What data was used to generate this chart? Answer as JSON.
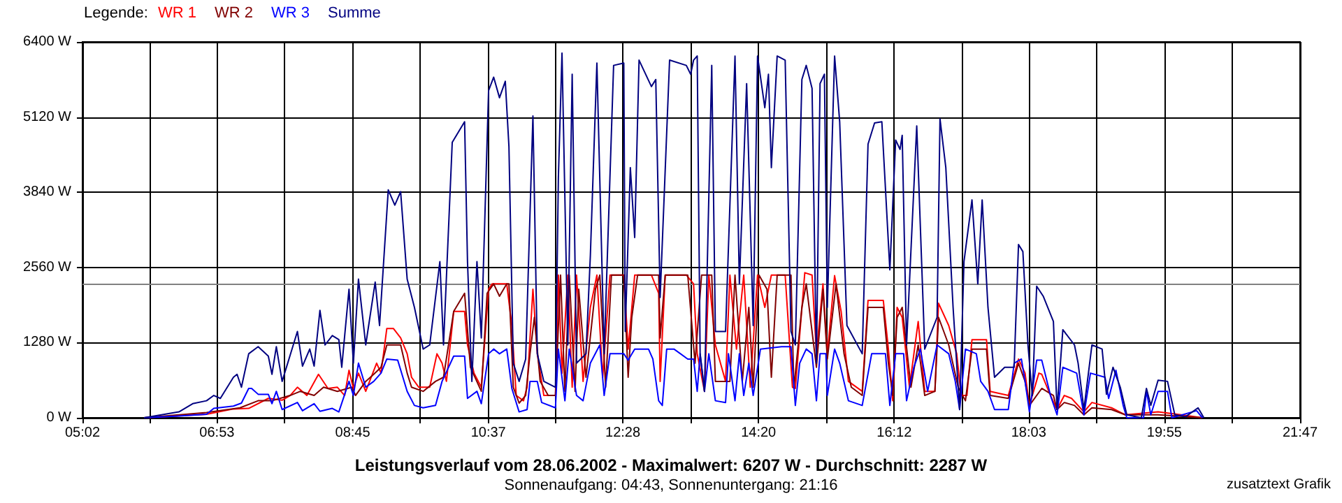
{
  "chart_data": {
    "type": "line",
    "title": "Leistungsverlauf vom 28.06.2002 - Maximalwert: 6207 W - Durchschnitt: 2287 W",
    "subtitle": "Sonnenaufgang: 04:43, Sonnenuntergang: 21:16",
    "legend_title": "Legende:",
    "annotations": [
      "zusatztext Grafik"
    ],
    "xlim": [
      5.0333,
      21.7833
    ],
    "xticks": [
      {
        "value": 5.0333,
        "label": "05:02"
      },
      {
        "value": 5.9639,
        "label": null
      },
      {
        "value": 6.8833,
        "label": "06:53"
      },
      {
        "value": 7.8139,
        "label": null
      },
      {
        "value": 8.75,
        "label": "08:45"
      },
      {
        "value": 9.6806,
        "label": null
      },
      {
        "value": 10.6167,
        "label": "10:37"
      },
      {
        "value": 11.5417,
        "label": null
      },
      {
        "value": 12.4667,
        "label": "12:28"
      },
      {
        "value": 13.4,
        "label": null
      },
      {
        "value": 14.3333,
        "label": "14:20"
      },
      {
        "value": 15.2639,
        "label": null
      },
      {
        "value": 16.2,
        "label": "16:12"
      },
      {
        "value": 17.125,
        "label": null
      },
      {
        "value": 18.05,
        "label": "18:03"
      },
      {
        "value": 18.9861,
        "label": null
      },
      {
        "value": 19.9167,
        "label": "19:55"
      },
      {
        "value": 20.85,
        "label": null
      },
      {
        "value": 21.7833,
        "label": "21:47"
      }
    ],
    "ylim": [
      0,
      6400
    ],
    "yticks": [
      {
        "value": 0,
        "label": "0 W"
      },
      {
        "value": 1280,
        "label": "1280 W"
      },
      {
        "value": 2560,
        "label": "2560 W"
      },
      {
        "value": 3840,
        "label": "3840 W"
      },
      {
        "value": 5120,
        "label": "5120 W"
      },
      {
        "value": 6400,
        "label": "6400 W"
      }
    ],
    "grid": true,
    "legend": "top left",
    "marker": "none",
    "line_style": "solid",
    "ref_lines": [
      {
        "axis": "y",
        "value": 2287,
        "color": "#808080"
      }
    ],
    "series": [
      {
        "name": "WR 1",
        "color": "#ff0000",
        "x": [
          5.88,
          6.74,
          7.11,
          7.32,
          7.59,
          7.78,
          7.89,
          7.99,
          8.12,
          8.28,
          8.41,
          8.54,
          8.64,
          8.7,
          8.76,
          8.83,
          8.93,
          9.08,
          9.14,
          9.22,
          9.31,
          9.41,
          9.5,
          9.56,
          9.66,
          9.81,
          9.91,
          9.98,
          10.04,
          10.14,
          10.29,
          10.33,
          10.42,
          10.52,
          10.62,
          10.67,
          10.87,
          10.94,
          11.0,
          11.1,
          11.15,
          11.23,
          11.29,
          11.38,
          11.54,
          11.58,
          11.63,
          11.71,
          11.77,
          11.83,
          11.92,
          12.02,
          12.11,
          12.19,
          12.29,
          12.48,
          12.54,
          12.63,
          12.86,
          12.96,
          12.98,
          13.05,
          13.34,
          13.44,
          13.49,
          13.59,
          13.65,
          13.74,
          13.88,
          13.94,
          14.03,
          14.13,
          14.22,
          14.32,
          14.42,
          14.51,
          14.7,
          14.8,
          14.84,
          14.97,
          15.07,
          15.13,
          15.22,
          15.28,
          15.38,
          15.47,
          15.57,
          15.76,
          15.84,
          16.05,
          16.12,
          16.18,
          16.24,
          16.31,
          16.41,
          16.53,
          16.62,
          16.76,
          16.81,
          16.95,
          17.06,
          17.12,
          17.2,
          17.27,
          17.47,
          17.52,
          17.77,
          17.91,
          18.0,
          18.06,
          18.19,
          18.23,
          18.35,
          18.44,
          18.54,
          18.64,
          18.81,
          18.92,
          19.19,
          19.38,
          19.83,
          20.15,
          20.44
        ],
        "values": [
          0,
          60,
          150,
          160,
          330,
          300,
          380,
          520,
          380,
          740,
          500,
          520,
          380,
          810,
          500,
          760,
          450,
          930,
          760,
          1520,
          1520,
          1360,
          1090,
          690,
          520,
          520,
          1090,
          930,
          620,
          1810,
          1810,
          1240,
          760,
          520,
          2190,
          2280,
          2280,
          1570,
          380,
          290,
          520,
          2190,
          1090,
          380,
          380,
          2430,
          760,
          2430,
          520,
          2430,
          620,
          1880,
          2430,
          690,
          2430,
          2430,
          1170,
          2430,
          2430,
          2120,
          620,
          2430,
          2430,
          2280,
          1090,
          450,
          2430,
          1240,
          620,
          2430,
          1170,
          2430,
          520,
          2430,
          1880,
          2430,
          2430,
          520,
          500,
          2470,
          2430,
          1090,
          2280,
          1090,
          2420,
          1810,
          620,
          450,
          2000,
          2000,
          1170,
          290,
          1880,
          1710,
          520,
          1640,
          450,
          450,
          1950,
          1570,
          1090,
          380,
          380,
          1330,
          1330,
          450,
          380,
          1000,
          760,
          210,
          760,
          740,
          380,
          140,
          380,
          330,
          100,
          260,
          170,
          50,
          100,
          50,
          0
        ]
      },
      {
        "name": "WR 2",
        "color": "#800000",
        "x": [
          5.88,
          6.74,
          7.2,
          7.45,
          7.64,
          7.89,
          8.03,
          8.22,
          8.35,
          8.54,
          8.74,
          8.79,
          8.93,
          9.04,
          9.14,
          9.22,
          9.41,
          9.5,
          9.56,
          9.72,
          9.89,
          10.0,
          10.14,
          10.29,
          10.37,
          10.52,
          10.6,
          10.69,
          10.77,
          10.87,
          10.9,
          10.96,
          11.04,
          11.13,
          11.19,
          11.25,
          11.33,
          11.44,
          11.54,
          11.61,
          11.67,
          11.73,
          11.81,
          11.86,
          11.96,
          12.09,
          12.15,
          12.23,
          12.31,
          12.48,
          12.54,
          12.59,
          12.67,
          12.96,
          12.98,
          13.05,
          13.36,
          13.46,
          13.55,
          13.69,
          13.74,
          13.94,
          14.01,
          14.11,
          14.2,
          14.26,
          14.34,
          14.45,
          14.51,
          14.59,
          14.78,
          14.82,
          14.93,
          14.99,
          15.13,
          15.22,
          15.28,
          15.4,
          15.51,
          15.61,
          15.76,
          15.84,
          16.05,
          16.12,
          16.18,
          16.24,
          16.31,
          16.43,
          16.53,
          16.62,
          16.76,
          16.81,
          16.95,
          17.08,
          17.18,
          17.27,
          17.47,
          17.52,
          17.77,
          17.91,
          18.0,
          18.06,
          18.23,
          18.39,
          18.44,
          18.54,
          18.68,
          18.81,
          18.92,
          19.19,
          19.38,
          19.83,
          20.21,
          20.44
        ],
        "values": [
          0,
          90,
          170,
          290,
          290,
          380,
          450,
          380,
          520,
          450,
          520,
          380,
          620,
          740,
          860,
          1240,
          1240,
          760,
          520,
          450,
          620,
          690,
          1810,
          2120,
          860,
          450,
          2120,
          2280,
          2070,
          2280,
          2280,
          520,
          250,
          380,
          1090,
          1710,
          620,
          380,
          380,
          2430,
          450,
          2430,
          450,
          2190,
          690,
          2190,
          2430,
          520,
          2430,
          2430,
          690,
          1710,
          2430,
          2430,
          1360,
          2430,
          2430,
          930,
          2430,
          2430,
          620,
          620,
          2430,
          620,
          1880,
          520,
          2430,
          2190,
          690,
          2430,
          2430,
          500,
          1880,
          2280,
          860,
          2190,
          1000,
          2280,
          1090,
          520,
          380,
          1880,
          1880,
          930,
          380,
          1710,
          1880,
          520,
          1240,
          380,
          450,
          1710,
          1240,
          520,
          290,
          1170,
          1170,
          380,
          330,
          930,
          620,
          210,
          500,
          380,
          140,
          260,
          210,
          50,
          170,
          140,
          50,
          50,
          20,
          0
        ]
      },
      {
        "name": "WR 3",
        "color": "#0000ff",
        "x": [
          5.88,
          6.36,
          6.74,
          6.84,
          7.11,
          7.22,
          7.32,
          7.36,
          7.45,
          7.59,
          7.64,
          7.7,
          7.78,
          7.99,
          8.06,
          8.22,
          8.3,
          8.47,
          8.56,
          8.7,
          8.76,
          8.83,
          8.93,
          9.04,
          9.14,
          9.22,
          9.37,
          9.5,
          9.6,
          9.72,
          9.89,
          9.98,
          10.14,
          10.29,
          10.33,
          10.46,
          10.52,
          10.62,
          10.69,
          10.77,
          10.87,
          10.94,
          11.04,
          11.15,
          11.19,
          11.29,
          11.35,
          11.54,
          11.58,
          11.67,
          11.73,
          11.83,
          11.92,
          12.02,
          12.15,
          12.21,
          12.29,
          12.48,
          12.54,
          12.63,
          12.82,
          12.88,
          12.96,
          13.01,
          13.07,
          13.17,
          13.36,
          13.44,
          13.49,
          13.53,
          13.59,
          13.65,
          13.74,
          13.88,
          13.92,
          14.01,
          14.07,
          14.13,
          14.2,
          14.26,
          14.36,
          14.65,
          14.78,
          14.84,
          14.9,
          14.99,
          15.07,
          15.13,
          15.18,
          15.26,
          15.28,
          15.38,
          15.45,
          15.57,
          15.76,
          15.89,
          16.08,
          16.14,
          16.22,
          16.33,
          16.37,
          16.47,
          16.56,
          16.66,
          16.79,
          16.95,
          17.04,
          17.1,
          17.18,
          17.33,
          17.39,
          17.49,
          17.58,
          17.77,
          17.85,
          17.95,
          18.0,
          18.06,
          18.16,
          18.23,
          18.35,
          18.44,
          18.52,
          18.71,
          18.81,
          18.9,
          19.1,
          19.15,
          19.25,
          19.35,
          19.4,
          19.63,
          19.67,
          19.73,
          19.83,
          19.96,
          20.02,
          20.36,
          20.44
        ],
        "values": [
          0,
          30,
          60,
          160,
          200,
          250,
          500,
          500,
          400,
          400,
          240,
          450,
          140,
          260,
          120,
          240,
          110,
          160,
          100,
          620,
          380,
          930,
          520,
          620,
          760,
          1000,
          980,
          450,
          210,
          170,
          210,
          620,
          1050,
          1050,
          330,
          450,
          240,
          1090,
          1170,
          1090,
          1170,
          500,
          100,
          140,
          620,
          620,
          260,
          170,
          1170,
          290,
          1170,
          380,
          290,
          930,
          1240,
          380,
          1090,
          1090,
          980,
          1170,
          1170,
          1000,
          290,
          210,
          1170,
          1170,
          1000,
          1000,
          450,
          1090,
          450,
          1090,
          290,
          260,
          1090,
          290,
          1090,
          380,
          930,
          380,
          1170,
          1210,
          1210,
          210,
          930,
          1170,
          1090,
          290,
          1090,
          1090,
          380,
          1170,
          930,
          290,
          210,
          1090,
          1090,
          210,
          1090,
          1090,
          290,
          860,
          1170,
          450,
          1240,
          1090,
          620,
          140,
          1170,
          1090,
          620,
          450,
          140,
          140,
          930,
          1000,
          620,
          100,
          980,
          980,
          380,
          50,
          860,
          760,
          50,
          760,
          690,
          330,
          810,
          210,
          0,
          0,
          450,
          50,
          450,
          450,
          0,
          120,
          0
        ]
      },
      {
        "name": "Summe",
        "color": "#000080",
        "x": [
          5.88,
          6.36,
          6.55,
          6.74,
          6.84,
          6.93,
          7.11,
          7.16,
          7.22,
          7.32,
          7.45,
          7.59,
          7.64,
          7.7,
          7.78,
          7.99,
          8.06,
          8.16,
          8.22,
          8.3,
          8.37,
          8.47,
          8.56,
          8.6,
          8.7,
          8.76,
          8.83,
          8.93,
          9.06,
          9.12,
          9.24,
          9.33,
          9.41,
          9.5,
          9.6,
          9.72,
          9.81,
          9.95,
          10.0,
          10.12,
          10.29,
          10.33,
          10.39,
          10.46,
          10.52,
          10.62,
          10.69,
          10.77,
          10.85,
          10.9,
          10.96,
          11.04,
          11.13,
          11.23,
          11.29,
          11.38,
          11.54,
          11.58,
          11.63,
          11.71,
          11.77,
          11.83,
          11.96,
          12.02,
          12.11,
          12.21,
          12.34,
          12.48,
          12.5,
          12.57,
          12.63,
          12.69,
          12.86,
          12.92,
          12.98,
          13.11,
          13.34,
          13.4,
          13.44,
          13.49,
          13.53,
          13.59,
          13.69,
          13.74,
          13.88,
          14.01,
          14.07,
          14.17,
          14.26,
          14.32,
          14.42,
          14.47,
          14.51,
          14.59,
          14.7,
          14.78,
          14.84,
          14.93,
          14.99,
          15.07,
          15.13,
          15.18,
          15.24,
          15.28,
          15.38,
          15.45,
          15.55,
          15.76,
          15.84,
          15.93,
          16.03,
          16.14,
          16.22,
          16.28,
          16.31,
          16.37,
          16.51,
          16.62,
          16.79,
          16.83,
          16.91,
          17.01,
          17.1,
          17.16,
          17.27,
          17.35,
          17.41,
          17.49,
          17.58,
          17.72,
          17.85,
          17.91,
          17.97,
          18.04,
          18.1,
          18.16,
          18.25,
          18.39,
          18.44,
          18.52,
          18.68,
          18.73,
          18.81,
          18.92,
          19.06,
          19.12,
          19.21,
          19.31,
          19.4,
          19.6,
          19.67,
          19.73,
          19.83,
          19.96,
          20.06,
          20.21,
          20.38,
          20.46
        ],
        "values": [
          0,
          100,
          240,
          290,
          380,
          330,
          690,
          740,
          520,
          1090,
          1210,
          1050,
          740,
          1210,
          620,
          1470,
          880,
          1170,
          880,
          1830,
          1240,
          1400,
          1330,
          860,
          2190,
          930,
          2360,
          1240,
          2310,
          1570,
          3880,
          3620,
          3850,
          2360,
          1880,
          1170,
          1240,
          2660,
          1240,
          4690,
          5040,
          2660,
          620,
          2660,
          1360,
          5570,
          5800,
          5450,
          5730,
          4620,
          930,
          620,
          1000,
          5140,
          1090,
          620,
          520,
          4090,
          6210,
          1240,
          5850,
          930,
          1090,
          2760,
          6040,
          1090,
          6000,
          6040,
          1470,
          4260,
          3070,
          6090,
          5640,
          5760,
          2050,
          6090,
          6000,
          5850,
          6090,
          6160,
          1090,
          450,
          6000,
          1470,
          1470,
          6160,
          2280,
          5690,
          1570,
          6160,
          5280,
          5850,
          4260,
          6160,
          6090,
          1470,
          1240,
          5760,
          6000,
          5610,
          930,
          5690,
          5850,
          1880,
          6160,
          5040,
          1570,
          1090,
          4660,
          5020,
          5040,
          2520,
          4730,
          4570,
          4810,
          1240,
          4970,
          1170,
          1710,
          5090,
          4260,
          1880,
          140,
          2660,
          3710,
          2280,
          3710,
          1880,
          690,
          860,
          860,
          2950,
          2830,
          1240,
          380,
          2240,
          2070,
          1640,
          140,
          1500,
          1240,
          930,
          140,
          1240,
          1170,
          400,
          860,
          520,
          50,
          0,
          500,
          210,
          640,
          620,
          50,
          20,
          170,
          0
        ]
      }
    ]
  }
}
